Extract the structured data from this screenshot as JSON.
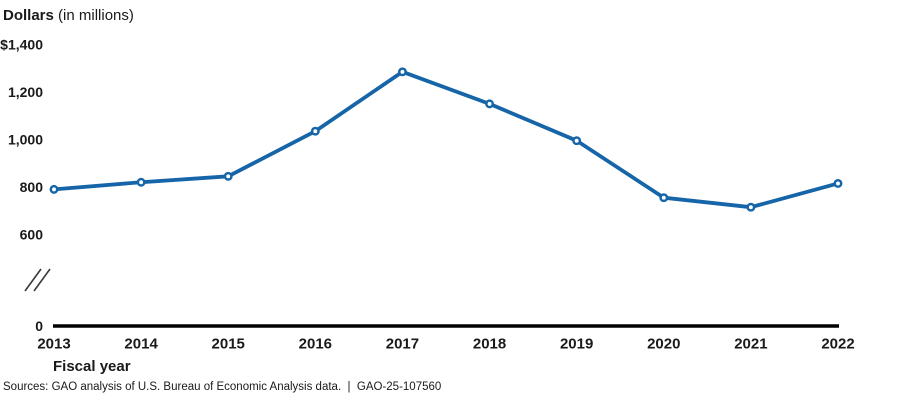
{
  "header": {
    "title_main": "Dollars",
    "title_suffix": " (in millions)"
  },
  "chart_data": {
    "type": "line",
    "title": "Dollars (in millions)",
    "xlabel": "Fiscal year",
    "ylabel": "Dollars (in millions)",
    "categories": [
      "2013",
      "2014",
      "2015",
      "2016",
      "2017",
      "2018",
      "2019",
      "2020",
      "2021",
      "2022"
    ],
    "series": [
      {
        "name": "Dollars (in millions)",
        "values": [
          790,
          820,
          845,
          1035,
          1285,
          1150,
          995,
          755,
          715,
          815
        ]
      }
    ],
    "yticks": [
      {
        "value": 1400,
        "label": "$1,400"
      },
      {
        "value": 1200,
        "label": "1,200"
      },
      {
        "value": 1000,
        "label": "1,000"
      },
      {
        "value": 800,
        "label": "800"
      },
      {
        "value": 600,
        "label": "600"
      },
      {
        "value": 0,
        "label": "0"
      }
    ],
    "ylim": [
      0,
      1400
    ],
    "axis_break": true,
    "grid": false,
    "legend": false,
    "line_color": "#1565A8",
    "marker": "open-circle",
    "axis_color": "#000000",
    "break_color": "#3a3a3a"
  },
  "xaxis": {
    "label": "Fiscal year"
  },
  "footer": {
    "text": "Sources: GAO analysis of U.S. Bureau of Economic Analysis data.  |  GAO-25-107560"
  }
}
